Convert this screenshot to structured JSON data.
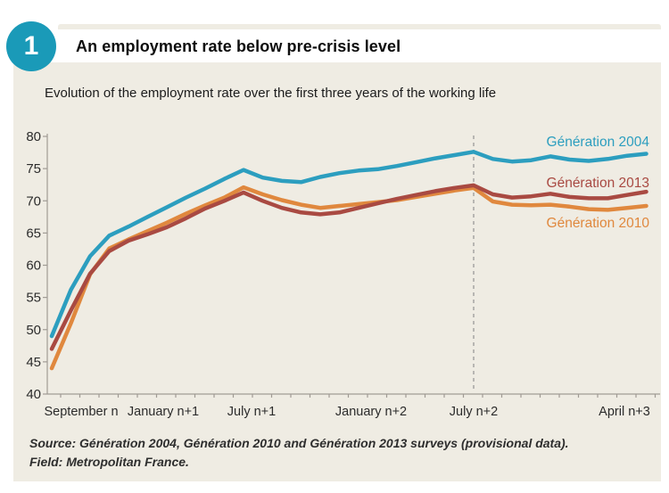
{
  "figure": {
    "number": "1",
    "title": "An employment rate below pre-crisis level",
    "subtitle": "Evolution of the employment rate over the first three years of the working life"
  },
  "source": {
    "line1": "Source: Génération 2004, Génération 2010 and Génération 2013 surveys (provisional data).",
    "line2": "Field: Metropolitan France."
  },
  "colors": {
    "panel_background": "#EFECE3",
    "badge": "#1A9AB8",
    "axis": "#A09B94",
    "dashed_line": "#999999",
    "tick_text": "#2B2B2B",
    "x_label_text": "#2B2B2B"
  },
  "chart_data": {
    "type": "line",
    "title": "Evolution of the employment rate over the first three years of the working life",
    "x_unit": "months of working life, month 0 = September year n",
    "x": [
      0,
      1,
      2,
      3,
      4,
      5,
      6,
      7,
      8,
      9,
      10,
      11,
      12,
      13,
      14,
      15,
      16,
      17,
      18,
      19,
      20,
      21,
      22,
      23,
      24,
      25,
      26,
      27,
      28,
      29,
      30,
      31
    ],
    "x_tick_labels": [
      "September n",
      "January n+1",
      "July n+1",
      "January n+2",
      "July n+2",
      "April n+3"
    ],
    "x_tick_label_months": [
      0,
      4,
      10,
      16,
      22,
      31
    ],
    "ylim": [
      40,
      80
    ],
    "yticks": [
      40,
      45,
      50,
      55,
      60,
      65,
      70,
      75,
      80
    ],
    "grid": false,
    "legend_position": "right, next to line ends",
    "dashed_vline": {
      "label": "July n+2",
      "month": 22
    },
    "series": [
      {
        "name": "Génération 2004",
        "color": "#2C9EBF",
        "values": [
          49.0,
          56.2,
          61.4,
          64.6,
          66.0,
          67.5,
          69.0,
          70.5,
          71.9,
          73.4,
          74.8,
          73.6,
          73.1,
          72.9,
          73.7,
          74.3,
          74.7,
          74.9,
          75.4,
          76.0,
          76.6,
          77.1,
          77.6,
          76.5,
          76.1,
          76.3,
          76.9,
          76.4,
          76.2,
          76.5,
          77.0,
          77.3
        ]
      },
      {
        "name": "Génération 2013",
        "color": "#A94A42",
        "values": [
          47.0,
          53.0,
          58.7,
          62.2,
          63.8,
          64.8,
          65.9,
          67.3,
          68.8,
          70.0,
          71.3,
          70.0,
          68.9,
          68.2,
          67.9,
          68.2,
          68.9,
          69.6,
          70.3,
          70.9,
          71.5,
          72.0,
          72.4,
          71.0,
          70.5,
          70.7,
          71.1,
          70.6,
          70.4,
          70.4,
          70.9,
          71.4
        ]
      },
      {
        "name": "Génération 2010",
        "color": "#E0883E",
        "values": [
          44.0,
          51.0,
          58.6,
          62.6,
          64.0,
          65.3,
          66.6,
          68.0,
          69.3,
          70.5,
          72.1,
          71.0,
          70.1,
          69.4,
          68.9,
          69.2,
          69.5,
          69.8,
          70.1,
          70.6,
          71.1,
          71.6,
          72.0,
          69.9,
          69.4,
          69.3,
          69.4,
          69.1,
          68.7,
          68.6,
          68.9,
          69.2
        ]
      }
    ]
  }
}
